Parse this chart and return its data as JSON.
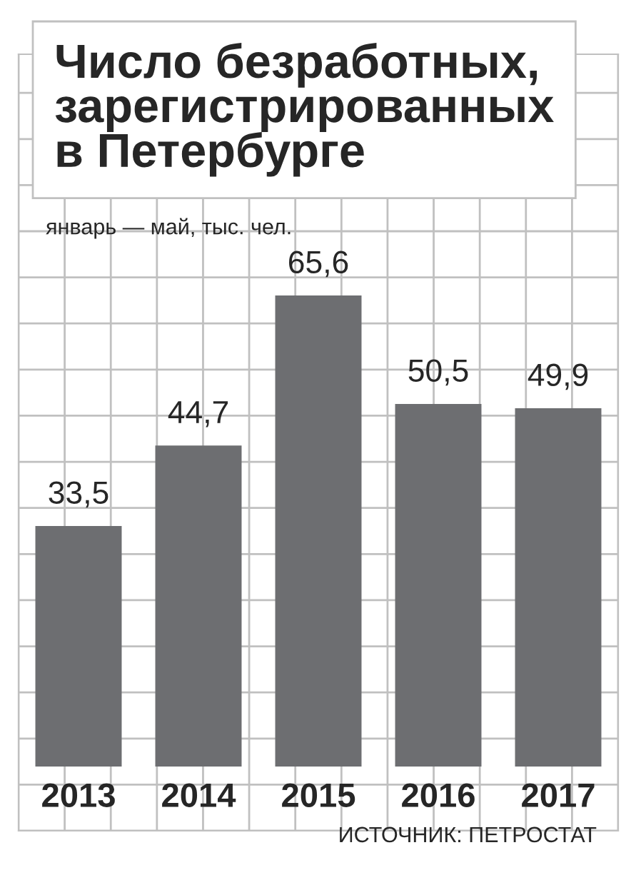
{
  "chart_data": {
    "type": "bar",
    "title": "Число безработных,\nзарегистрированных\nв Петербурге",
    "subtitle": "январь — май, тыс. чел.",
    "categories": [
      "2013",
      "2014",
      "2015",
      "2016",
      "2017"
    ],
    "values": [
      33.5,
      44.7,
      65.6,
      50.5,
      49.9
    ],
    "value_labels": [
      "33,5",
      "44,7",
      "65,6",
      "50,5",
      "49,9"
    ],
    "color": "#6d6e71",
    "grid": true,
    "annotations": [
      "ИСТОЧНИК: ПЕТРОСТАТ"
    ]
  }
}
